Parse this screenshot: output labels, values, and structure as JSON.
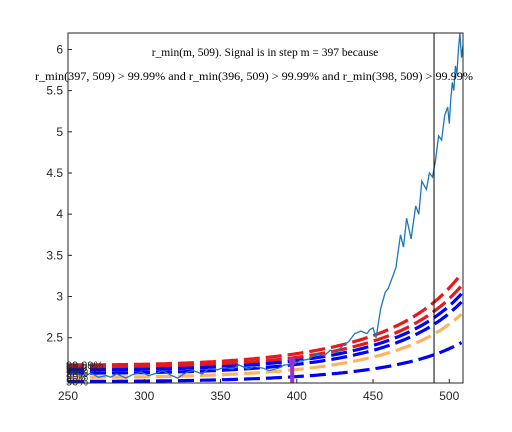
{
  "chart_data": {
    "type": "line",
    "title_line1": "r_min(m, 509). Signal is in step m = 397 because",
    "title_line2": "r_min(397, 509) > 99.99% and r_min(396, 509) > 99.99% and r_min(398, 509) > 99.99%",
    "xlabel": "",
    "ylabel": "",
    "xlim": [
      250,
      509
    ],
    "ylim": [
      1.95,
      6.2
    ],
    "xticks": [
      250,
      300,
      350,
      400,
      450,
      500
    ],
    "yticks": [
      2.5,
      3,
      3.5,
      4,
      4.5,
      5,
      5.5,
      6
    ],
    "grid": false,
    "signal_step": 397,
    "vertical_line_x": 490,
    "colors": {
      "signal": "#1f77b4",
      "threshold_red": "#e41a1c",
      "threshold_blue": "#0000ff",
      "threshold_orange": "#fdb462",
      "marker": "#9932cc",
      "vline": "#000000"
    },
    "thresholds": [
      {
        "label": "99.99%",
        "color": "#e41a1c",
        "base": 2.17,
        "end": 3.3
      },
      {
        "label": "99.9%",
        "color": "#e41a1c",
        "base": 2.14,
        "end": 3.15
      },
      {
        "label": "99%",
        "color": "#0000ff",
        "base": 2.11,
        "end": 3.05
      },
      {
        "label": "95%",
        "color": "#0000ff",
        "base": 2.07,
        "end": 2.95
      },
      {
        "label": "90%",
        "color": "#fdb462",
        "base": 2.02,
        "end": 2.8
      },
      {
        "label": "50%",
        "color": "#0000ff",
        "base": 1.97,
        "end": 2.45
      }
    ],
    "left_labels": [
      "99.99%",
      "99.9%",
      "99%",
      "95%",
      "90%",
      "50%"
    ],
    "signal_series": {
      "name": "r_min(m, 509)",
      "x": [
        250,
        255,
        260,
        265,
        270,
        275,
        278,
        282,
        288,
        292,
        298,
        303,
        308,
        312,
        318,
        322,
        325,
        328,
        332,
        338,
        342,
        348,
        352,
        358,
        362,
        368,
        372,
        378,
        382,
        388,
        392,
        397,
        402,
        408,
        412,
        418,
        422,
        426,
        430,
        434,
        438,
        442,
        446,
        448,
        450,
        452,
        455,
        458,
        460,
        462,
        465,
        468,
        470,
        472,
        475,
        478,
        480,
        482,
        485,
        487,
        489,
        491,
        493,
        495,
        497,
        499,
        500,
        501,
        502,
        503,
        504,
        505,
        506,
        507,
        508,
        509
      ],
      "y": [
        2.05,
        2.08,
        2.03,
        2.07,
        2.02,
        2.04,
        2.02,
        2.06,
        2.01,
        2.05,
        2.08,
        2.04,
        2.07,
        2.1,
        2.04,
        2.01,
        2.05,
        2.08,
        2.1,
        2.06,
        2.12,
        2.11,
        2.14,
        2.12,
        2.17,
        2.12,
        2.15,
        2.13,
        2.1,
        2.13,
        2.17,
        2.17,
        2.22,
        2.24,
        2.3,
        2.28,
        2.35,
        2.32,
        2.4,
        2.45,
        2.55,
        2.58,
        2.55,
        2.6,
        2.62,
        2.5,
        2.85,
        3.05,
        3.1,
        3.2,
        3.35,
        3.75,
        3.6,
        3.95,
        3.7,
        4.1,
        4.0,
        4.4,
        4.3,
        4.5,
        4.45,
        4.65,
        4.95,
        4.9,
        5.2,
        5.3,
        5.1,
        5.4,
        5.6,
        5.5,
        5.8,
        5.7,
        6.0,
        6.2,
        5.9,
        6.05
      ]
    }
  }
}
